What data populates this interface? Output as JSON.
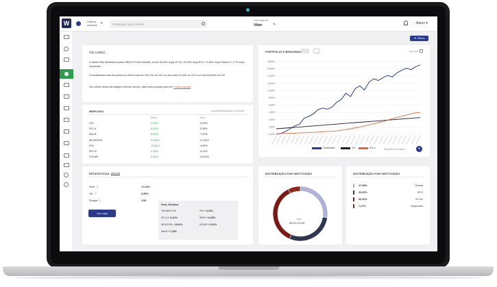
{
  "topbar": {
    "client_label": "Últimos\nacessos",
    "search_placeholder": "Pesquisar outro cliente",
    "viewing_label": "Você está em",
    "viewing_name": "Vitor",
    "user_name": "Aarez"
  },
  "filters_label": "Filtros",
  "welcome": {
    "greeting": "Olá AAREZ,",
    "line1": "O cliente Vitor Beldesuer possui R$222.073,69 investido, sendo 36,30% no(a) XP Inv, 29,09% no(a) BTG, 27,38% no(a) Órama e 7,27% no(a) Easynvest.",
    "line2": "A rentabilidade total da carteira do cliente está em 226,73% do CDI, no ano está 112,59% do CDI e no mês 640,89% do CDI.",
    "line3_prefix": "Seu cliente ainda não adquiriu nenhum serviço, ative uma proposta para ele: ",
    "line3_link": "Enviar proposta"
  },
  "market": {
    "title": "MERCADO",
    "note": "acumulado/acumulado no período",
    "col_rent": "Rent.",
    "col_ano": "Ano",
    "rows": [
      {
        "name": "CDI",
        "rent": "1,19%",
        "ano": "0,03%"
      },
      {
        "name": "IPC-A",
        "rent": "5,22%",
        "ano": "5,38%"
      },
      {
        "name": "IMA-B",
        "rent": "6,59%",
        "ano": "7,92%"
      },
      {
        "name": "IBOVESPA",
        "rent": "37,85%",
        "ano": "27,40%"
      },
      {
        "name": "IFIX",
        "rent": "12,81%",
        "ano": "4,59%"
      },
      {
        "name": "IRF-M",
        "rent": "2,35%",
        "ano": "4,14%"
      },
      {
        "name": "DOLAR",
        "rent": "6,69%",
        "ano": "20,56%"
      }
    ]
  },
  "stats": {
    "title": "ESTATÍSTICAS",
    "tab": "período",
    "rows": [
      {
        "label": "Rent.",
        "value": "17,04%"
      },
      {
        "label": "Vol.",
        "value": "0,95%"
      },
      {
        "label": "Sharpe",
        "value": "2,59"
      }
    ],
    "rel_title": "Rent. Relativa",
    "rel": [
      {
        "label": "TRL466% CDI",
        "value": ""
      },
      {
        "label": "IFIX",
        "value": "+ 4,23%"
      },
      {
        "label": "IPC-A",
        "value": "+ 11,92%"
      },
      {
        "label": "IRFM",
        "value": "+ 14,95%"
      },
      {
        "label": "IBOVESPA",
        "value": "- 40,61%"
      },
      {
        "label": "DOLAR",
        "value": "+ 8,20%"
      },
      {
        "label": "IMA-B",
        "value": "+ 7,28%"
      }
    ],
    "button": "Ver mais"
  },
  "portfolio": {
    "title": "PORTFÓLIO E BENCHMARK",
    "sub_label": "Resultado",
    "add_label": "Escolher benchmarks",
    "legend": [
      {
        "name": "Consolidado",
        "color": "#2a3a8c"
      },
      {
        "name": "CDI",
        "color": "#1c1c2e"
      },
      {
        "name": "IPC-A",
        "color": "#e8643a"
      }
    ],
    "y_ticks": [
      "18,00%",
      "16,00%",
      "14,00%",
      "12,00%",
      "10,00%",
      "8,00%",
      "6,00%",
      "4,00%",
      "2,00%",
      "0,00%",
      "-2,00%"
    ]
  },
  "chart_data": {
    "type": "line",
    "ylim": [
      -2,
      18
    ],
    "series": [
      {
        "name": "Consolidado",
        "values": [
          -2,
          -1.8,
          -1.2,
          -0.5,
          0.3,
          0.8,
          2.4,
          2.9,
          3.6,
          4.8,
          5.2,
          4.9,
          5.5,
          6.8,
          7.6,
          9.3,
          8.4,
          10.6,
          11.3,
          10.2,
          12.4,
          13.3,
          12.8,
          13.6,
          14.2,
          13.8,
          14.9,
          15.6,
          16.2,
          15.8,
          16.6,
          17.1
        ]
      },
      {
        "name": "CDI",
        "values": [
          -0.5,
          -0.4,
          -0.3,
          -0.2,
          -0.1,
          0.0,
          0.1,
          0.2,
          0.3,
          0.4,
          0.5,
          0.6,
          0.7,
          0.8,
          0.9,
          1.0,
          1.1,
          1.2,
          1.3,
          1.4,
          1.5,
          1.6,
          1.7,
          1.8,
          1.9,
          2.0,
          2.1,
          2.2,
          2.3,
          2.4,
          2.5,
          2.6
        ]
      },
      {
        "name": "IPC-A",
        "values": [
          -1.9,
          -1.8,
          -1.8,
          -1.7,
          -1.7,
          -1.6,
          -1.6,
          -1.5,
          -1.5,
          -1.4,
          -1.3,
          -1.2,
          -1.2,
          -1.1,
          -0.9,
          -0.7,
          -0.5,
          -0.2,
          0.0,
          0.3,
          0.6,
          0.9,
          1.2,
          1.5,
          1.9,
          2.3,
          2.6,
          3.0,
          3.3,
          3.6,
          3.9,
          4.0
        ]
      }
    ]
  },
  "institutions_donut": {
    "title": "DISTRIBUIÇÃO POR INSTITUIÇÃO",
    "total_label": "Total",
    "total_value": "R$ 222.073,69",
    "slices": [
      {
        "name": "Órama",
        "pct": 27.38,
        "color": "#aeb2d9"
      },
      {
        "name": "BTG",
        "pct": 29.09,
        "color": "#2f3651"
      },
      {
        "name": "XP Inv",
        "pct": 36.3,
        "color": "#7a1a14"
      },
      {
        "name": "Easynvest",
        "pct": 7.27,
        "color": "#8c2a1e"
      }
    ]
  },
  "institutions_list": {
    "title": "DISTRIBUIÇÃO POR INSTITUIÇÃO",
    "rows": [
      {
        "pct": "27,38%",
        "name": "Órama",
        "color": "#aeb2d9"
      },
      {
        "pct": "29,09%",
        "name": "BTG",
        "color": "#2f3651"
      },
      {
        "pct": "36,30%",
        "name": "XP Inv",
        "color": "#7a1a14"
      },
      {
        "pct": "7,27%",
        "name": "Easynvest",
        "color": "#8c2a1e"
      }
    ]
  }
}
